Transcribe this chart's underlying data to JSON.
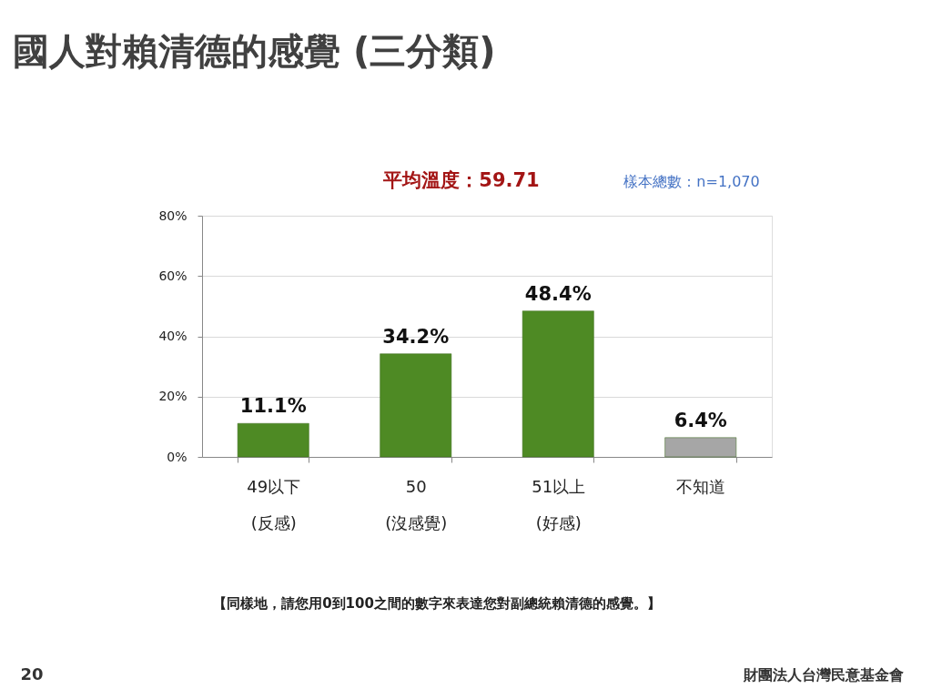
{
  "chart_data": {
    "type": "bar",
    "title": "國人對賴清德的感覺 (三分類)",
    "categories": [
      "49以下\n(反感)",
      "50\n(沒感覺)",
      "51以上\n(好感)",
      "不知道"
    ],
    "values": [
      11.1,
      34.2,
      48.4,
      6.4
    ],
    "colors": [
      "#4e8a24",
      "#4e8a24",
      "#4e8a24",
      "#a6a6a6"
    ],
    "value_labels": [
      "11.1%",
      "34.2%",
      "48.4%",
      "6.4%"
    ],
    "ylim": [
      0,
      80
    ],
    "yticks": [
      {
        "value": 0,
        "label": "0%"
      },
      {
        "value": 20,
        "label": "20%"
      },
      {
        "value": 40,
        "label": "40%"
      },
      {
        "value": 60,
        "label": "60%"
      },
      {
        "value": 80,
        "label": "80%"
      }
    ],
    "grid": "y",
    "annotations": [
      "平均溫度：59.71",
      "樣本總數：n=1,070",
      "【同樣地，請您用0到100之間的數字來表達您對副總統賴清德的感覺。】",
      "20",
      "財團法人台灣民意基金會"
    ]
  }
}
